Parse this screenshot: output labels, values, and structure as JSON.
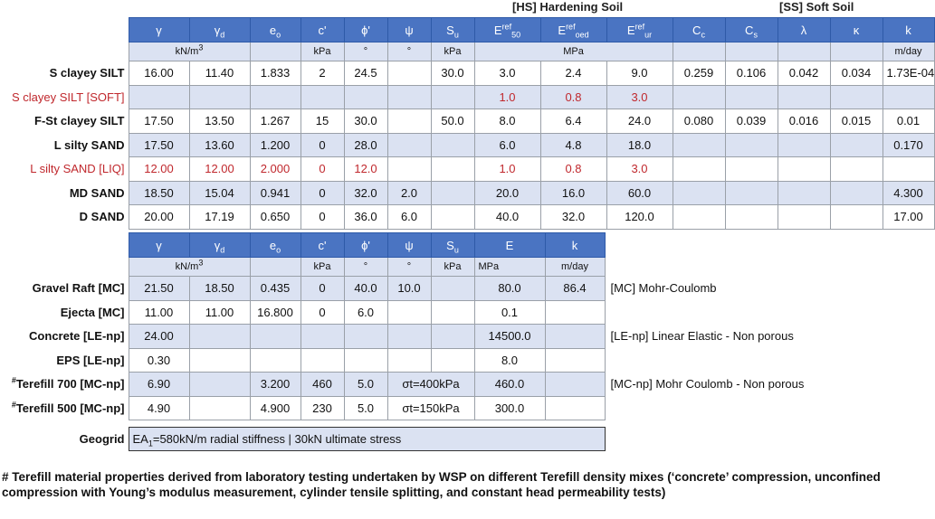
{
  "model_labels": {
    "hs": "[HS] Hardening Soil",
    "ss": "[SS] Soft Soil"
  },
  "table1": {
    "headers": [
      "γ",
      "γ_d",
      "e_o",
      "c'",
      "ϕ'",
      "ψ",
      "S_u",
      "E^ref_50",
      "E^ref_oed",
      "E^ref_ur",
      "C_c",
      "C_s",
      "λ",
      "κ",
      "k"
    ],
    "units": {
      "kn": "kN/m³",
      "kpa_c": "kPa",
      "deg_phi": "°",
      "deg_psi": "°",
      "kpa_su": "kPa",
      "mpa": "MPa",
      "perm": "m/day"
    },
    "rows": [
      {
        "label": "S clayey SILT",
        "red": false,
        "values": [
          "16.00",
          "11.40",
          "1.833",
          "2",
          "24.5",
          "",
          "30.0",
          "3.0",
          "2.4",
          "9.0",
          "0.259",
          "0.106",
          "0.042",
          "0.034",
          "1.73E-04"
        ]
      },
      {
        "label": "S clayey SILT [SOFT]",
        "red": true,
        "values": [
          "",
          "",
          "",
          "",
          "",
          "",
          "",
          "1.0",
          "0.8",
          "3.0",
          "",
          "",
          "",
          "",
          ""
        ]
      },
      {
        "label": "F-St clayey SILT",
        "red": false,
        "values": [
          "17.50",
          "13.50",
          "1.267",
          "15",
          "30.0",
          "",
          "50.0",
          "8.0",
          "6.4",
          "24.0",
          "0.080",
          "0.039",
          "0.016",
          "0.015",
          "0.01"
        ]
      },
      {
        "label": "L silty SAND",
        "red": false,
        "values": [
          "17.50",
          "13.60",
          "1.200",
          "0",
          "28.0",
          "",
          "",
          "6.0",
          "4.8",
          "18.0",
          "",
          "",
          "",
          "",
          "0.170"
        ]
      },
      {
        "label": "L silty SAND [LIQ]",
        "red": true,
        "values": [
          "12.00",
          "12.00",
          "2.000",
          "0",
          "12.0",
          "",
          "",
          "1.0",
          "0.8",
          "3.0",
          "",
          "",
          "",
          "",
          ""
        ]
      },
      {
        "label": "MD SAND",
        "red": false,
        "values": [
          "18.50",
          "15.04",
          "0.941",
          "0",
          "32.0",
          "2.0",
          "",
          "20.0",
          "16.0",
          "60.0",
          "",
          "",
          "",
          "",
          "4.300"
        ]
      },
      {
        "label": "D SAND",
        "red": false,
        "values": [
          "20.00",
          "17.19",
          "0.650",
          "0",
          "36.0",
          "6.0",
          "",
          "40.0",
          "32.0",
          "120.0",
          "",
          "",
          "",
          "",
          "17.00"
        ]
      }
    ]
  },
  "table2": {
    "headers": [
      "γ",
      "γ_d",
      "e_o",
      "c'",
      "ϕ'",
      "ψ",
      "S_u",
      "E",
      "k"
    ],
    "units": {
      "kn": "kN/m³",
      "kpa_c": "kPa",
      "deg_phi": "°",
      "deg_psi": "°",
      "kpa_su": "kPa",
      "mpa": "MPa",
      "perm": "m/day"
    },
    "rows": [
      {
        "label": "Gravel Raft [MC]",
        "hash": false,
        "values": [
          "21.50",
          "18.50",
          "0.435",
          "0",
          "40.0",
          "10.0",
          "",
          "80.0",
          "86.4"
        ],
        "note": "[MC] Mohr-Coulomb"
      },
      {
        "label": "Ejecta [MC]",
        "hash": false,
        "values": [
          "11.00",
          "11.00",
          "16.800",
          "0",
          "6.0",
          "",
          "",
          "0.1",
          ""
        ],
        "note": ""
      },
      {
        "label": "Concrete [LE-np]",
        "hash": false,
        "values": [
          "24.00",
          "",
          "",
          "",
          "",
          "",
          "",
          "14500.0",
          ""
        ],
        "note": "[LE-np] Linear Elastic - Non porous"
      },
      {
        "label": "EPS [LE-np]",
        "hash": false,
        "values": [
          "0.30",
          "",
          "",
          "",
          "",
          "",
          "",
          "8.0",
          ""
        ],
        "note": ""
      },
      {
        "label": "Terefill 700 [MC-np]",
        "hash": true,
        "values": [
          "6.90",
          "",
          "3.200",
          "460",
          "5.0",
          "σt=400kPa",
          "",
          "460.0",
          ""
        ],
        "note": "[MC-np] Mohr Coulomb - Non porous"
      },
      {
        "label": "Terefill 500 [MC-np]",
        "hash": true,
        "values": [
          "4.90",
          "",
          "4.900",
          "230",
          "5.0",
          "σt=150kPa",
          "",
          "300.0",
          ""
        ],
        "note": ""
      }
    ],
    "geogrid": {
      "label": "Geogrid",
      "text": "EA1=580kN/m radial stiffness | 30kN ultimate stress"
    }
  },
  "footnote": "# Terefill material properties derived from laboratory testing undertaken by WSP on different Terefill density mixes (‘concrete’ compression, unconfined compression with Young’s modulus measurement, cylinder tensile splitting, and constant head permeability tests)"
}
